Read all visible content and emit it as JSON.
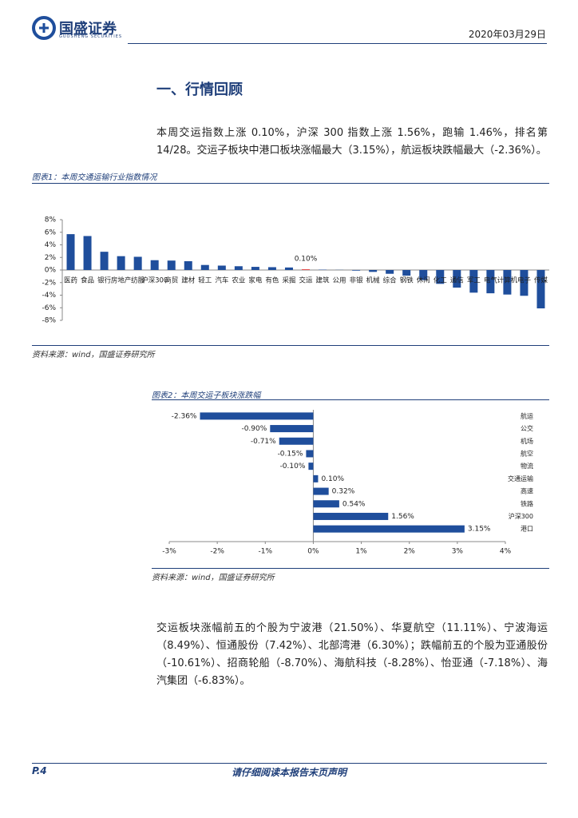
{
  "header": {
    "brand": "国盛证券",
    "brand_en": "GUOSHENG SECURITIES",
    "date": "2020年03月29日"
  },
  "section_title": "一、行情回顾",
  "paragraphs": [
    "本周交运指数上涨 0.10%，沪深 300 指数上涨 1.56%，跑输 1.46%，排名第 14/28。交运子板块中港口板块涨幅最大（3.15%），航运板块跌幅最大（-2.36%）。",
    "交运板块涨幅前五的个股为宁波港（21.50%）、华夏航空（11.11%）、宁波海运（8.49%）、恒通股份（7.42%）、北部湾港（6.30%）；跌幅前五的个股为亚通股份（-10.61%）、招商轮船（-8.70%）、海航科技（-8.28%）、怡亚通（-7.18%）、海汽集团（-6.83%）。"
  ],
  "figures": [
    {
      "caption": "图表1：本周交通运输行业指数情况",
      "source": "资料来源：wind，国盛证券研究所"
    },
    {
      "caption": "图表2：本周交运子板块涨跌幅",
      "source": "资料来源：wind，国盛证券研究所"
    }
  ],
  "footer": {
    "page": "P.4",
    "notice": "请仔细阅读本报告末页声明"
  },
  "chart_data": [
    {
      "type": "bar",
      "categories": [
        "医药",
        "食品",
        "银行",
        "房地产",
        "纺服",
        "沪深300",
        "商贸",
        "建材",
        "轻工",
        "汽车",
        "农业",
        "家电",
        "有色",
        "采掘",
        "交运",
        "建筑",
        "公用",
        "非银",
        "机械",
        "综合",
        "钢铁",
        "休闲",
        "化工",
        "通信",
        "军工",
        "电气",
        "计算机",
        "电子",
        "传媒"
      ],
      "values": [
        5.7,
        5.4,
        2.9,
        2.2,
        2.1,
        1.56,
        1.5,
        1.4,
        0.8,
        0.7,
        0.6,
        0.5,
        0.45,
        0.4,
        0.1,
        0.05,
        0.02,
        -0.1,
        -0.3,
        -0.6,
        -0.9,
        -1.6,
        -2.2,
        -2.8,
        -3.6,
        -3.7,
        -3.9,
        -4.1,
        -6.1
      ],
      "value_labels": [
        null,
        null,
        null,
        null,
        null,
        null,
        null,
        null,
        null,
        null,
        null,
        null,
        null,
        null,
        "0.10%",
        null,
        null,
        null,
        null,
        null,
        null,
        null,
        null,
        null,
        null,
        null,
        null,
        null,
        null
      ],
      "colors": [
        "#1f4e9c",
        "#1f4e9c",
        "#1f4e9c",
        "#1f4e9c",
        "#1f4e9c",
        "#1f4e9c",
        "#1f4e9c",
        "#1f4e9c",
        "#1f4e9c",
        "#1f4e9c",
        "#1f4e9c",
        "#1f4e9c",
        "#1f4e9c",
        "#1f4e9c",
        "#e02020",
        "#1f4e9c",
        "#1f4e9c",
        "#1f4e9c",
        "#1f4e9c",
        "#1f4e9c",
        "#1f4e9c",
        "#1f4e9c",
        "#1f4e9c",
        "#1f4e9c",
        "#1f4e9c",
        "#1f4e9c",
        "#1f4e9c",
        "#1f4e9c",
        "#1f4e9c"
      ],
      "ylim": [
        -8,
        8
      ],
      "yticks": [
        {
          "value": 8,
          "label": "8%"
        },
        {
          "value": 6,
          "label": "6%"
        },
        {
          "value": 4,
          "label": "4%"
        },
        {
          "value": 2,
          "label": "2%"
        },
        {
          "value": 0,
          "label": "0%"
        },
        {
          "value": -2,
          "label": "-2%"
        },
        {
          "value": -4,
          "label": "-4%"
        },
        {
          "value": -6,
          "label": "-6%"
        },
        {
          "value": -8,
          "label": "-8%"
        }
      ]
    },
    {
      "type": "hbar",
      "categories": [
        "航运",
        "公交",
        "机场",
        "航空",
        "物流",
        "交通运输",
        "高速",
        "铁路",
        "沪深300",
        "港口"
      ],
      "values": [
        -2.36,
        -0.9,
        -0.71,
        -0.15,
        -0.1,
        0.1,
        0.32,
        0.54,
        1.56,
        3.15
      ],
      "value_labels": [
        "-2.36%",
        "-0.90%",
        "-0.71%",
        "-0.15%",
        "-0.10%",
        "0.10%",
        "0.32%",
        "0.54%",
        "1.56%",
        "3.15%"
      ],
      "color": "#1f4e9c",
      "xlim": [
        -3,
        4
      ],
      "xticks": [
        {
          "value": -3,
          "label": "-3%"
        },
        {
          "value": -2,
          "label": "-2%"
        },
        {
          "value": -1,
          "label": "-1%"
        },
        {
          "value": 0,
          "label": "0%"
        },
        {
          "value": 1,
          "label": "1%"
        },
        {
          "value": 2,
          "label": "2%"
        },
        {
          "value": 3,
          "label": "3%"
        },
        {
          "value": 4,
          "label": "4%"
        }
      ]
    }
  ]
}
